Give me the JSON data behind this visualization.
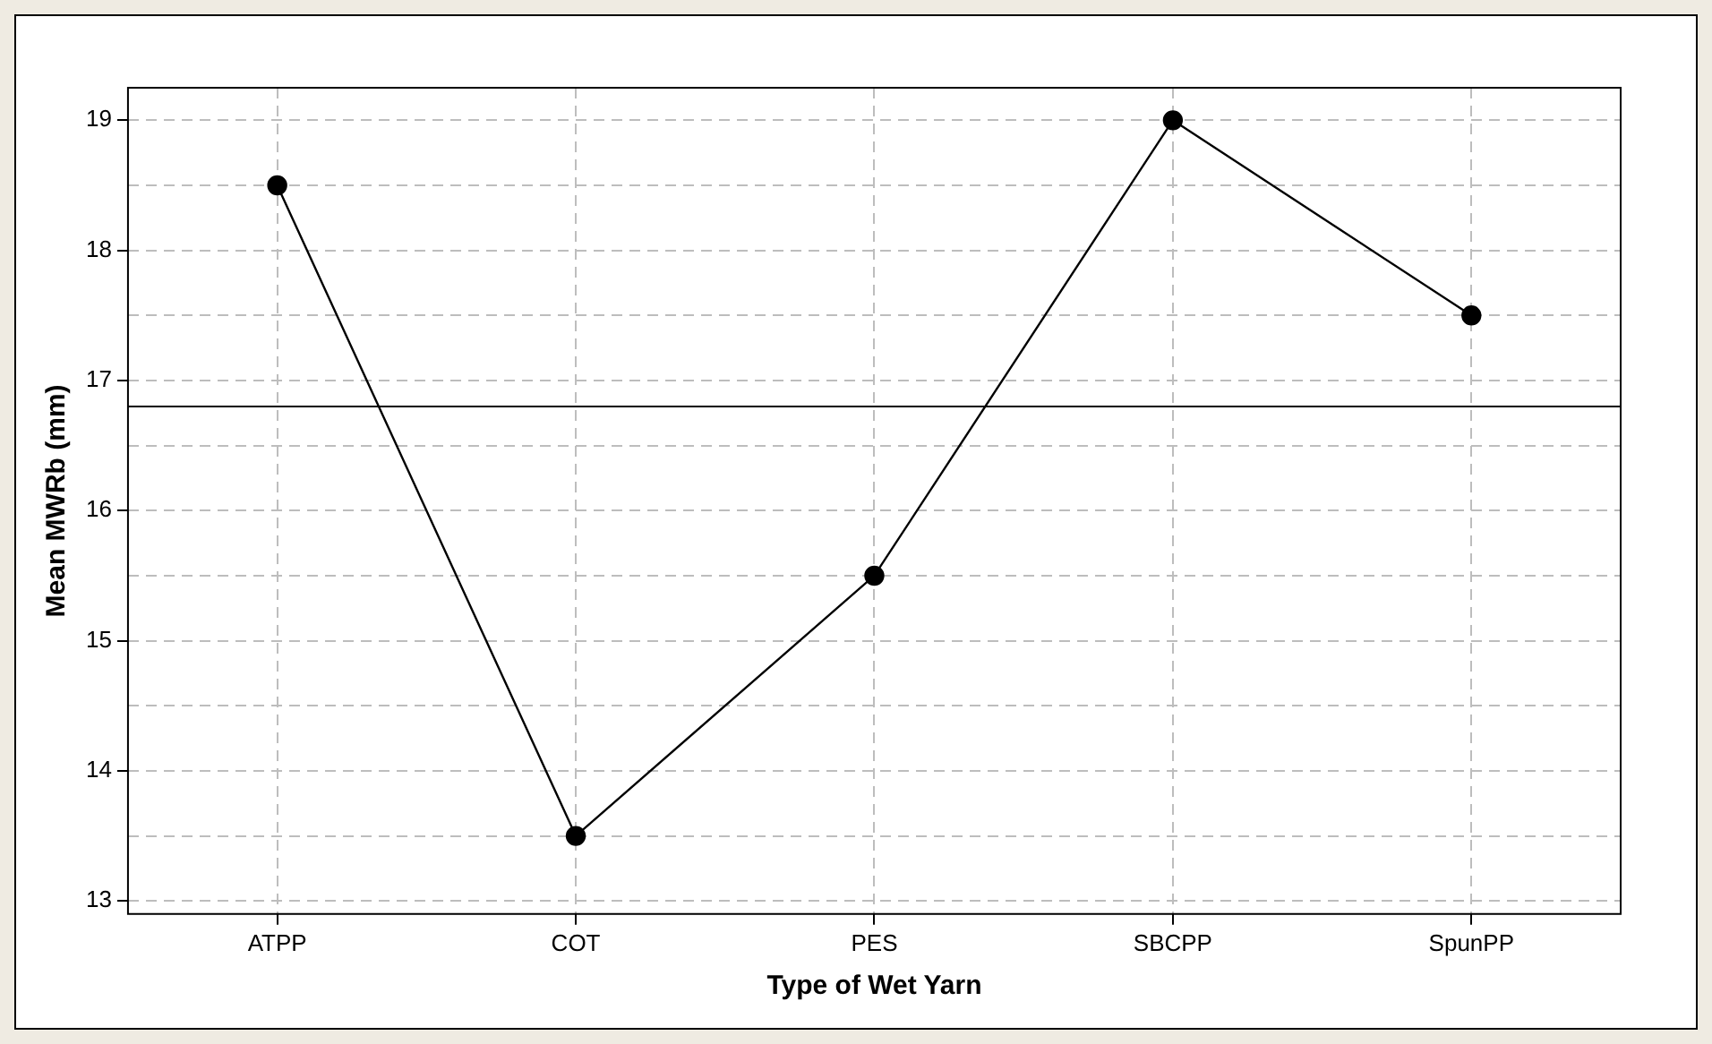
{
  "chart_data": {
    "type": "line",
    "xlabel": "Type of Wet Yarn",
    "ylabel": "Mean MWRb (mm)",
    "categories": [
      "ATPP",
      "COT",
      "PES",
      "SBCPP",
      "SpunPP"
    ],
    "series": [
      {
        "color": "#000000",
        "values": [
          18.5,
          13.5,
          15.5,
          19.0,
          17.5
        ]
      }
    ],
    "ylim": [
      12.9,
      19.25
    ],
    "yticks": [
      13,
      {
        "value": 13.5,
        "label": null
      },
      14,
      {
        "value": 14.5,
        "label": null
      },
      15,
      {
        "value": 15.5,
        "label": null
      },
      16,
      {
        "value": 16.5,
        "label": null
      },
      17,
      {
        "value": 17.5,
        "label": null
      },
      18,
      {
        "value": 18.5,
        "label": null
      },
      19
    ],
    "ref_lines": [
      {
        "axis": "y",
        "value": 16.8,
        "color": "#000000"
      }
    ],
    "grid": true,
    "legend": false,
    "marker": "circle",
    "line_style": "solid"
  }
}
